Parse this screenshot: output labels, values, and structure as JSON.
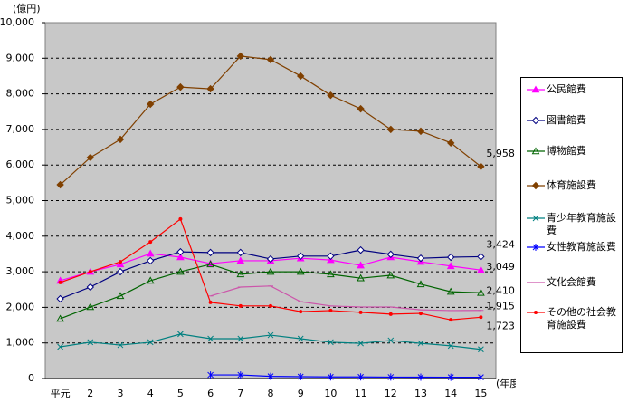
{
  "chart_data": {
    "type": "line",
    "y_unit": "(億円)",
    "x_unit": "(年度)",
    "categories": [
      "平元",
      "2",
      "3",
      "4",
      "5",
      "6",
      "7",
      "8",
      "9",
      "10",
      "11",
      "12",
      "13",
      "14",
      "15"
    ],
    "ylim": [
      0,
      10000
    ],
    "yticks": [
      0,
      {
        "value": 1000,
        "label": "1,000"
      },
      {
        "value": 2000,
        "label": "2,000"
      },
      {
        "value": 3000,
        "label": "3,000"
      },
      {
        "value": 4000,
        "label": "4,000"
      },
      {
        "value": 5000,
        "label": "5,000"
      },
      {
        "value": 6000,
        "label": "6,000"
      },
      {
        "value": 7000,
        "label": "7,000"
      },
      {
        "value": 8000,
        "label": "8,000"
      },
      {
        "value": 9000,
        "label": "9,000"
      },
      {
        "value": 10000,
        "label": "10,000"
      }
    ],
    "grid": true,
    "legend": "right",
    "series": [
      {
        "name": "公民館費",
        "color": "#ff00ff",
        "values": [
          2750,
          3000,
          3210,
          3510,
          3410,
          3230,
          3310,
          3310,
          3380,
          3330,
          3180,
          3410,
          3280,
          3160,
          3049
        ],
        "value_labels": [
          null,
          null,
          null,
          null,
          null,
          null,
          null,
          null,
          null,
          null,
          null,
          null,
          null,
          null,
          "3,049"
        ]
      },
      {
        "name": "図書館費",
        "color": "#000080",
        "values": [
          2240,
          2570,
          3000,
          3310,
          3560,
          3540,
          3540,
          3360,
          3440,
          3440,
          3610,
          3490,
          3380,
          3410,
          3424
        ],
        "value_labels": [
          null,
          null,
          null,
          null,
          null,
          null,
          null,
          null,
          null,
          null,
          null,
          null,
          null,
          null,
          "3,424"
        ]
      },
      {
        "name": "博物館費",
        "color": "#006400",
        "values": [
          1680,
          2010,
          2320,
          2750,
          3000,
          3210,
          2930,
          3000,
          3000,
          2930,
          2820,
          2900,
          2650,
          2440,
          2410
        ],
        "value_labels": [
          null,
          null,
          null,
          null,
          null,
          null,
          null,
          null,
          null,
          null,
          null,
          null,
          null,
          null,
          "2,410"
        ]
      },
      {
        "name": "体育施設費",
        "color": "#804000",
        "values": [
          5445,
          6210,
          6720,
          7710,
          8190,
          8140,
          9060,
          8960,
          8500,
          7960,
          7580,
          7000,
          6950,
          6620,
          5958
        ],
        "value_labels": [
          null,
          null,
          null,
          null,
          null,
          null,
          null,
          null,
          null,
          null,
          null,
          null,
          null,
          null,
          "5,958"
        ]
      },
      {
        "name": "青少年教育施設費",
        "color": "#008080",
        "values": [
          890,
          1020,
          940,
          1020,
          1250,
          1120,
          1120,
          1220,
          1120,
          1020,
          990,
          1070,
          990,
          920,
          820
        ],
        "value_labels": [
          null,
          null,
          null,
          null,
          null,
          null,
          null,
          null,
          null,
          null,
          null,
          null,
          null,
          null,
          null
        ]
      },
      {
        "name": "女性教育施設費",
        "color": "#0000ff",
        "values": [
          null,
          null,
          null,
          null,
          null,
          100,
          100,
          60,
          50,
          45,
          45,
          40,
          38,
          36,
          35
        ],
        "value_labels": [
          null,
          null,
          null,
          null,
          null,
          null,
          null,
          null,
          null,
          null,
          null,
          null,
          null,
          null,
          null
        ]
      },
      {
        "name": "文化会館費",
        "color": "#cc55aa",
        "values": [
          null,
          null,
          null,
          null,
          null,
          2320,
          2570,
          2600,
          2160,
          2040,
          2010,
          2010,
          1930,
          1910,
          1915
        ],
        "value_labels": [
          null,
          null,
          null,
          null,
          null,
          null,
          null,
          null,
          null,
          null,
          null,
          null,
          null,
          null,
          "1,915"
        ]
      },
      {
        "name": "その他の社会教育施設費",
        "color": "#ff0000",
        "values": [
          2700,
          3000,
          3280,
          3840,
          4480,
          2140,
          2040,
          2040,
          1880,
          1910,
          1860,
          1810,
          1830,
          1650,
          1723
        ],
        "value_labels": [
          null,
          null,
          null,
          null,
          null,
          null,
          null,
          null,
          null,
          null,
          null,
          null,
          null,
          null,
          "1,723"
        ]
      }
    ]
  }
}
